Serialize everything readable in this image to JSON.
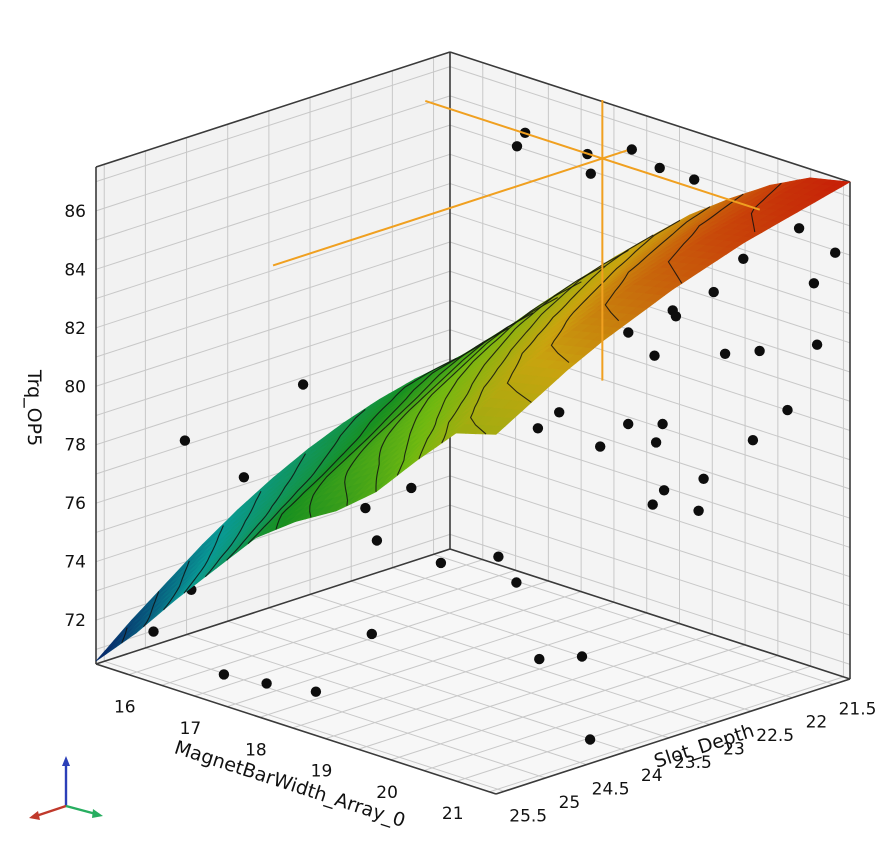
{
  "chart_data": {
    "type": "surface",
    "title": "",
    "xlabel": "MagnetBarWidth_Array_0",
    "ylabel": "Slot_Depth",
    "zlabel": "Trq_OP5",
    "x_ticks": [
      "16",
      "17",
      "18",
      "19",
      "20",
      "21"
    ],
    "y_ticks": [
      "21.5",
      "22",
      "22.5",
      "23",
      "23.5",
      "24",
      "24.5",
      "25",
      "25.5"
    ],
    "z_ticks": [
      "72",
      "74",
      "76",
      "78",
      "80",
      "82",
      "84",
      "86"
    ],
    "xlim": [
      15.5,
      21.6
    ],
    "ylim": [
      21.3,
      25.6
    ],
    "zlim": [
      70.5,
      87.5
    ],
    "grid": true,
    "colormap": [
      "#08206e",
      "#0aa5a0",
      "#1a9a22",
      "#78c612",
      "#d8b010",
      "#d62008"
    ],
    "crosshair": {
      "x": 18.2,
      "y": 21.6,
      "z": 86.1
    },
    "points": [
      {
        "x": 17.2,
        "y": 25.4,
        "z": 71.2
      },
      {
        "x": 17.6,
        "y": 25.2,
        "z": 71.0
      },
      {
        "x": 18.1,
        "y": 25.0,
        "z": 70.9
      },
      {
        "x": 16.0,
        "y": 25.3,
        "z": 71.7
      },
      {
        "x": 16.2,
        "y": 25.0,
        "z": 73.0
      },
      {
        "x": 16.5,
        "y": 24.6,
        "z": 76.7
      },
      {
        "x": 15.6,
        "y": 24.6,
        "z": 77.3
      },
      {
        "x": 16.9,
        "y": 24.2,
        "z": 79.8
      },
      {
        "x": 17.6,
        "y": 24.0,
        "z": 75.9
      },
      {
        "x": 17.9,
        "y": 24.1,
        "z": 75.1
      },
      {
        "x": 18.2,
        "y": 24.4,
        "z": 72.4
      },
      {
        "x": 18.3,
        "y": 24.0,
        "z": 77.1
      },
      {
        "x": 18.5,
        "y": 23.8,
        "z": 74.5
      },
      {
        "x": 19.0,
        "y": 23.5,
        "z": 74.8
      },
      {
        "x": 19.4,
        "y": 23.6,
        "z": 74.3
      },
      {
        "x": 20.0,
        "y": 23.8,
        "z": 72.3
      },
      {
        "x": 20.4,
        "y": 23.6,
        "z": 72.5
      },
      {
        "x": 20.9,
        "y": 23.9,
        "z": 70.3
      },
      {
        "x": 19.1,
        "y": 23.1,
        "z": 78.9
      },
      {
        "x": 19.3,
        "y": 23.0,
        "z": 79.5
      },
      {
        "x": 19.8,
        "y": 22.9,
        "z": 78.6
      },
      {
        "x": 20.1,
        "y": 22.8,
        "z": 79.5
      },
      {
        "x": 20.4,
        "y": 22.7,
        "z": 79.0
      },
      {
        "x": 20.5,
        "y": 22.7,
        "z": 79.7
      },
      {
        "x": 20.6,
        "y": 22.9,
        "z": 77.2
      },
      {
        "x": 20.0,
        "y": 22.4,
        "z": 81.4
      },
      {
        "x": 19.6,
        "y": 22.4,
        "z": 81.9
      },
      {
        "x": 19.2,
        "y": 22.6,
        "z": 82.5
      },
      {
        "x": 19.9,
        "y": 22.1,
        "z": 82.6
      },
      {
        "x": 20.2,
        "y": 22.3,
        "z": 82.8
      },
      {
        "x": 20.4,
        "y": 22.0,
        "z": 83.5
      },
      {
        "x": 20.7,
        "y": 22.1,
        "z": 81.7
      },
      {
        "x": 21.1,
        "y": 22.0,
        "z": 82.0
      },
      {
        "x": 21.4,
        "y": 21.9,
        "z": 80.1
      },
      {
        "x": 20.6,
        "y": 21.8,
        "z": 84.6
      },
      {
        "x": 19.3,
        "y": 21.9,
        "z": 84.2
      },
      {
        "x": 21.2,
        "y": 21.6,
        "z": 85.9
      },
      {
        "x": 20.8,
        "y": 21.4,
        "z": 86.2
      },
      {
        "x": 21.3,
        "y": 21.5,
        "z": 84.0
      },
      {
        "x": 21.5,
        "y": 21.4,
        "z": 85.1
      },
      {
        "x": 21.6,
        "y": 21.7,
        "z": 82.3
      },
      {
        "x": 21.5,
        "y": 22.4,
        "z": 79.6
      },
      {
        "x": 21.0,
        "y": 22.6,
        "z": 78.1
      },
      {
        "x": 20.9,
        "y": 23.0,
        "z": 78.0
      },
      {
        "x": 21.3,
        "y": 22.9,
        "z": 77.5
      },
      {
        "x": 17.4,
        "y": 22.0,
        "z": 86.3
      },
      {
        "x": 17.9,
        "y": 22.3,
        "z": 87.4
      },
      {
        "x": 18.6,
        "y": 22.1,
        "z": 87.0
      },
      {
        "x": 18.9,
        "y": 21.8,
        "z": 87.1
      },
      {
        "x": 19.2,
        "y": 21.7,
        "z": 86.6
      },
      {
        "x": 18.4,
        "y": 21.9,
        "z": 86.0
      },
      {
        "x": 19.6,
        "y": 21.6,
        "z": 86.4
      }
    ],
    "surface": {
      "xs": [
        15.5,
        16.11,
        16.72,
        17.33,
        17.94,
        18.55,
        19.16,
        19.77,
        20.38,
        20.99,
        21.6
      ],
      "ys": [
        25.6,
        25.17,
        24.74,
        24.31,
        23.88,
        23.45,
        23.02,
        22.59,
        22.16,
        21.73,
        21.3
      ],
      "z": [
        [
          70.6,
          72.0,
          73.6,
          75.1,
          76.6,
          77.6,
          78.4,
          79.5,
          81.0,
          82.4,
          82.8
        ],
        [
          71.6,
          72.9,
          74.4,
          75.8,
          77.3,
          78.4,
          79.3,
          80.5,
          82.0,
          83.2,
          83.5
        ],
        [
          72.5,
          73.8,
          75.1,
          76.5,
          77.9,
          79.1,
          80.2,
          81.4,
          82.8,
          83.9,
          84.2
        ],
        [
          73.4,
          74.6,
          75.8,
          77.1,
          78.5,
          79.8,
          81.0,
          82.2,
          83.5,
          84.5,
          84.8
        ],
        [
          74.2,
          75.3,
          76.4,
          77.7,
          79.1,
          80.5,
          81.7,
          82.9,
          84.1,
          85.0,
          85.3
        ],
        [
          74.9,
          75.9,
          77.0,
          78.3,
          79.7,
          81.1,
          82.3,
          83.5,
          84.6,
          85.5,
          85.8
        ],
        [
          75.5,
          76.5,
          77.6,
          78.9,
          80.3,
          81.7,
          82.9,
          84.0,
          85.1,
          85.9,
          86.2
        ],
        [
          76.0,
          77.0,
          78.2,
          79.5,
          80.9,
          82.2,
          83.4,
          84.5,
          85.5,
          86.3,
          86.6
        ],
        [
          76.4,
          77.5,
          78.7,
          80.0,
          81.4,
          82.7,
          83.9,
          84.9,
          85.9,
          86.6,
          86.9
        ],
        [
          76.7,
          77.8,
          79.1,
          80.4,
          81.8,
          83.1,
          84.3,
          85.3,
          86.2,
          86.9,
          87.2
        ],
        [
          76.9,
          78.1,
          79.4,
          80.7,
          82.1,
          83.4,
          84.6,
          85.6,
          86.5,
          87.2,
          87.5
        ]
      ]
    }
  },
  "triad": {
    "x_color": "#c0392b",
    "y_color": "#27ae60",
    "z_color": "#2b3fb8"
  }
}
